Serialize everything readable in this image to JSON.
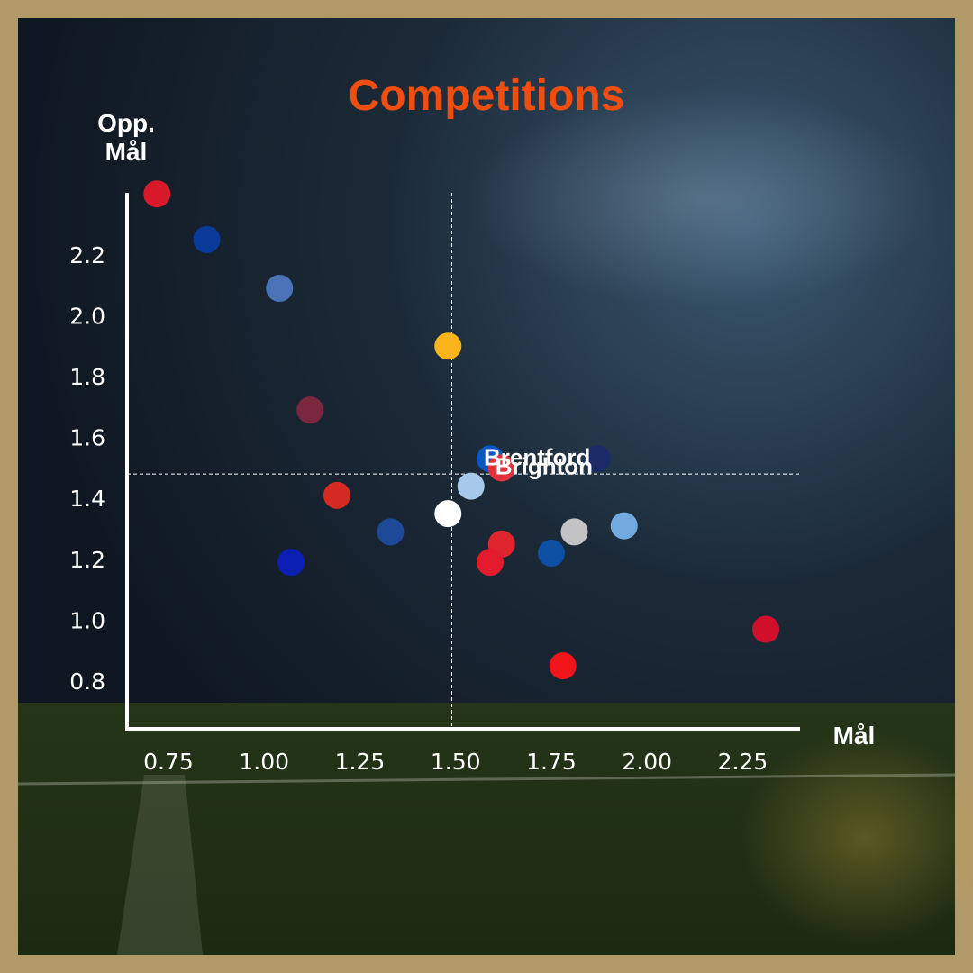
{
  "chart_data": {
    "type": "scatter",
    "title": "Competitions",
    "xlabel": "Mål",
    "ylabel_line1": "Opp.",
    "ylabel_line2": "Mål",
    "xlim": [
      0.65,
      2.4
    ],
    "ylim": [
      0.65,
      2.4
    ],
    "x_ticks": [
      "0.75",
      "1.00",
      "1.25",
      "1.50",
      "1.75",
      "2.00",
      "2.25"
    ],
    "y_ticks": [
      "0.8",
      "1.0",
      "1.2",
      "1.4",
      "1.6",
      "1.8",
      "2.0",
      "2.2"
    ],
    "mean_x": 1.49,
    "mean_y": 1.48,
    "points": [
      {
        "x": 0.72,
        "y": 2.4,
        "color": "#d7192a",
        "label": ""
      },
      {
        "x": 0.85,
        "y": 2.25,
        "color": "#0a3a9a",
        "label": ""
      },
      {
        "x": 1.04,
        "y": 2.09,
        "color": "#4a73b8",
        "label": ""
      },
      {
        "x": 1.12,
        "y": 1.69,
        "color": "#7b2740",
        "label": ""
      },
      {
        "x": 1.19,
        "y": 1.41,
        "color": "#d42a22",
        "label": ""
      },
      {
        "x": 1.07,
        "y": 1.19,
        "color": "#0b1fb5",
        "label": ""
      },
      {
        "x": 1.33,
        "y": 1.29,
        "color": "#1c4a98",
        "label": ""
      },
      {
        "x": 1.48,
        "y": 1.9,
        "color": "#fbb41c",
        "label": ""
      },
      {
        "x": 1.48,
        "y": 1.35,
        "color": "#ffffff",
        "label": ""
      },
      {
        "x": 1.54,
        "y": 1.44,
        "color": "#a6c8ea",
        "label": ""
      },
      {
        "x": 1.59,
        "y": 1.53,
        "color": "#0a57c4",
        "label": "Brentford"
      },
      {
        "x": 1.62,
        "y": 1.5,
        "color": "#e1333c",
        "label": "Brighton"
      },
      {
        "x": 1.87,
        "y": 1.53,
        "color": "#1c2a68",
        "label": ""
      },
      {
        "x": 1.62,
        "y": 1.25,
        "color": "#e0242e",
        "label": ""
      },
      {
        "x": 1.59,
        "y": 1.19,
        "color": "#e31b2c",
        "label": ""
      },
      {
        "x": 1.75,
        "y": 1.22,
        "color": "#0d4fa3",
        "label": ""
      },
      {
        "x": 1.81,
        "y": 1.29,
        "color": "#c3c3c6",
        "label": ""
      },
      {
        "x": 1.94,
        "y": 1.31,
        "color": "#71aade",
        "label": ""
      },
      {
        "x": 1.78,
        "y": 0.85,
        "color": "#f1141a",
        "label": ""
      },
      {
        "x": 2.31,
        "y": 0.97,
        "color": "#d0102a",
        "label": ""
      }
    ]
  },
  "colors": {
    "title": "#f04e10",
    "axis": "#ffffff"
  }
}
